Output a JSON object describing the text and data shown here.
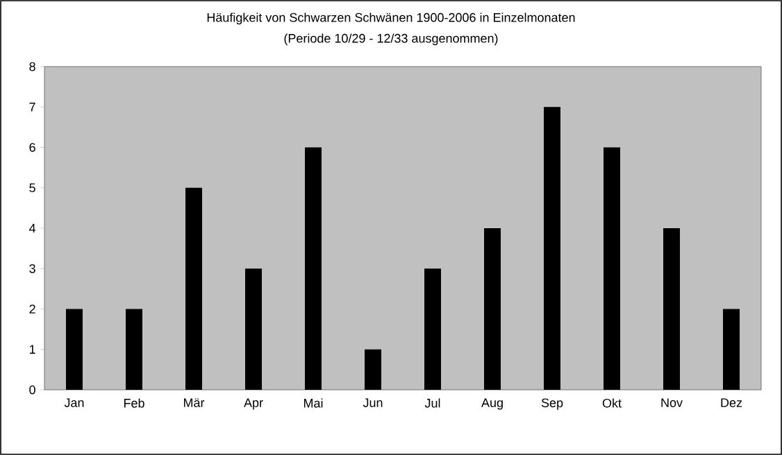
{
  "chart_data": {
    "type": "bar",
    "title": "Häufigkeit von Schwarzen Schwänen 1900-2006 in Einzelmonaten",
    "subtitle": "(Periode 10/29 - 12/33 ausgenommen)",
    "categories": [
      "Jan",
      "Feb",
      "Mär",
      "Apr",
      "Mai",
      "Jun",
      "Jul",
      "Aug",
      "Sep",
      "Okt",
      "Nov",
      "Dez"
    ],
    "values": [
      2,
      2,
      5,
      3,
      6,
      1,
      3,
      4,
      7,
      6,
      4,
      2
    ],
    "color": "#000000",
    "ylim": [
      0,
      8
    ],
    "yticks": [
      0,
      1,
      2,
      3,
      4,
      5,
      6,
      7,
      8
    ]
  }
}
